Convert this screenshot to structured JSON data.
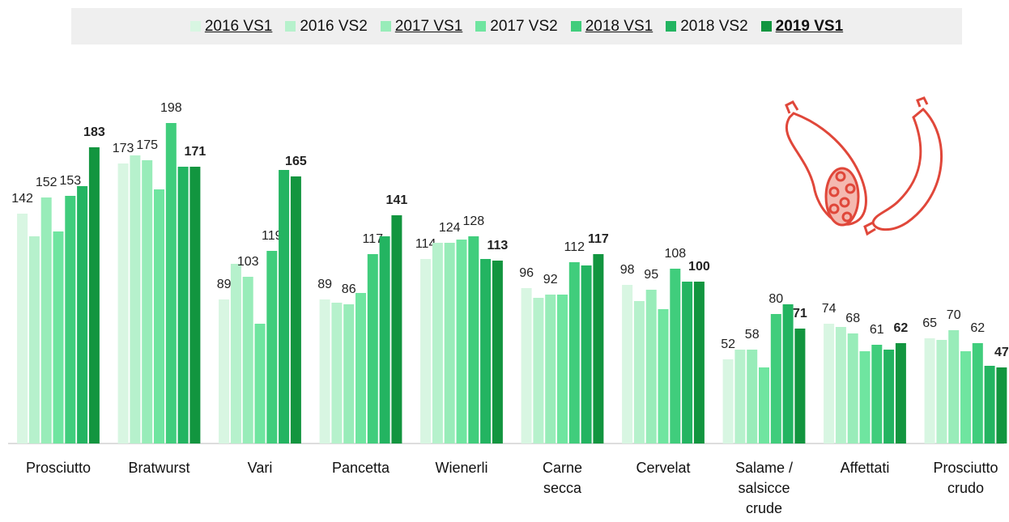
{
  "chart_data": {
    "type": "bar",
    "categories": [
      "Prosciutto",
      "Bratwurst",
      "Vari",
      "Pancetta",
      "Wienerli",
      "Carne secca",
      "Cervelat",
      "Salame / salsicce crude",
      "Affettati",
      "Prosciutto crudo"
    ],
    "ylim": [
      0,
      200
    ],
    "series": [
      {
        "name": "2016 VS1",
        "color": "#d8f6e2",
        "labels": true,
        "values": [
          142,
          173,
          89,
          89,
          114,
          96,
          98,
          52,
          74,
          65
        ]
      },
      {
        "name": "2016 VS2",
        "color": "#b6f1cc",
        "values": [
          128,
          178,
          111,
          87,
          124,
          90,
          88,
          58,
          72,
          64
        ]
      },
      {
        "name": "2017 VS1",
        "color": "#98ecb9",
        "labels": true,
        "values": [
          152,
          175,
          103,
          86,
          124,
          92,
          95,
          58,
          68,
          70
        ]
      },
      {
        "name": "2017 VS2",
        "color": "#6fe5a0",
        "values": [
          131,
          157,
          74,
          93,
          126,
          92,
          83,
          47,
          57,
          57
        ]
      },
      {
        "name": "2018 VS1",
        "color": "#40cd7c",
        "labels": true,
        "values": [
          153,
          198,
          119,
          117,
          128,
          112,
          108,
          80,
          61,
          62
        ]
      },
      {
        "name": "2018 VS2",
        "color": "#23b461",
        "values": [
          159,
          171,
          169,
          128,
          114,
          110,
          100,
          86,
          58,
          48
        ]
      },
      {
        "name": "2019 VS1",
        "color": "#12953f",
        "labels": true,
        "bold": true,
        "values": [
          183,
          171,
          165,
          141,
          113,
          117,
          100,
          71,
          62,
          47
        ]
      }
    ]
  }
}
